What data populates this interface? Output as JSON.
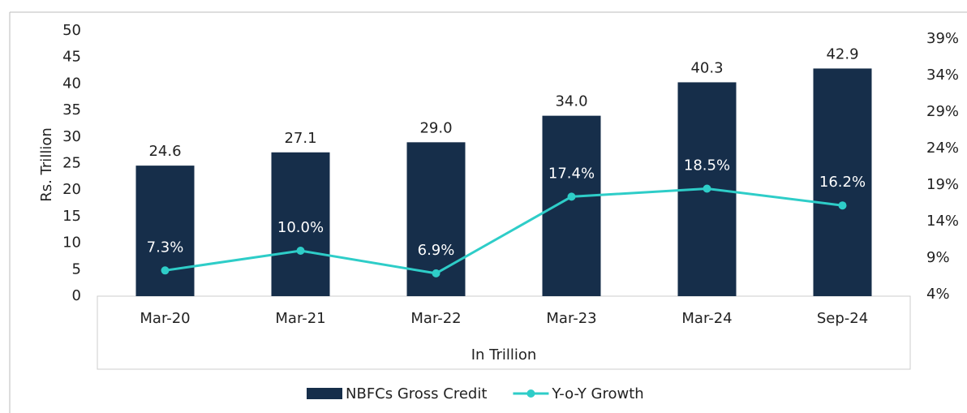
{
  "chart_data": {
    "type": "bar",
    "categories": [
      "Mar-20",
      "Mar-21",
      "Mar-22",
      "Mar-23",
      "Mar-24",
      "Sep-24"
    ],
    "series": [
      {
        "name": "NBFCs Gross Credit",
        "type": "bar",
        "color": "#162e4a",
        "values": [
          24.6,
          27.1,
          29.0,
          34.0,
          40.3,
          42.9
        ],
        "value_labels": [
          "24.6",
          "27.1",
          "29.0",
          "34.0",
          "40.3",
          "42.9"
        ]
      },
      {
        "name": "Y-o-Y Growth",
        "type": "line",
        "axis": "y2",
        "color": "#2ecdc8",
        "values": [
          7.3,
          10.0,
          6.9,
          17.4,
          18.5,
          16.2
        ],
        "value_labels": [
          "7.3%",
          "10.0%",
          "6.9%",
          "17.4%",
          "18.5%",
          "16.2%"
        ]
      }
    ],
    "y_label": "Rs. Trillion",
    "x_label": "In Trillion",
    "ylim": [
      0,
      50
    ],
    "yticks": [
      0,
      5,
      10,
      15,
      20,
      25,
      30,
      35,
      40,
      45,
      50
    ],
    "y2lim": [
      4,
      39
    ],
    "y2ticks": [
      {
        "value": 4,
        "label": "4%"
      },
      {
        "value": 9,
        "label": "9%"
      },
      {
        "value": 14,
        "label": "14%"
      },
      {
        "value": 19,
        "label": "19%"
      },
      {
        "value": 24,
        "label": "24%"
      },
      {
        "value": 29,
        "label": "29%"
      },
      {
        "value": 34,
        "label": "34%"
      },
      {
        "value": 39,
        "label": "39%"
      }
    ],
    "legend": "bottom"
  }
}
